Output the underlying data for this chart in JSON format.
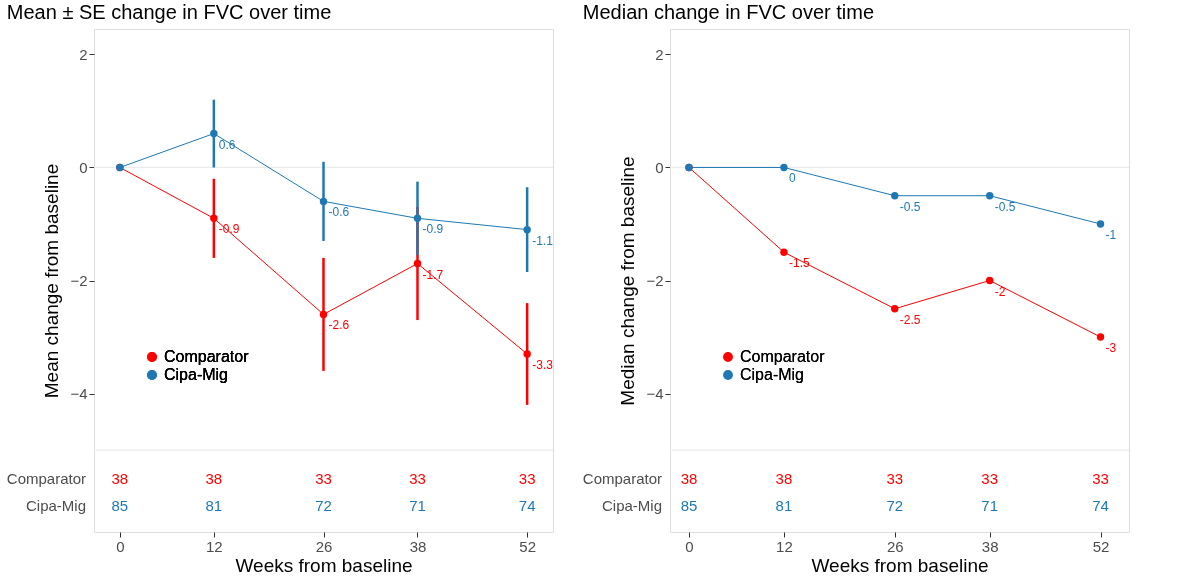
{
  "chart_data": [
    {
      "type": "line",
      "title": "Mean ± SE change in FVC over time",
      "xlabel": "Weeks from baseline",
      "ylabel": "Mean change from baseline",
      "x": [
        0,
        12,
        26,
        38,
        52
      ],
      "xlim": [
        -3.3,
        55.3
      ],
      "xticks": [
        0,
        12,
        26,
        38,
        52
      ],
      "ylim": [
        -6.45,
        2.45
      ],
      "yticks": [
        2,
        0,
        -2,
        -4
      ],
      "series": [
        {
          "name": "Comparator",
          "color": "#ff0000",
          "values": [
            0,
            -0.9,
            -2.6,
            -1.7,
            -3.3
          ],
          "errors": [
            null,
            0.7,
            1.0,
            1.0,
            0.9
          ],
          "value_labels": [
            null,
            "-0.9",
            "-2.6",
            "-1.7",
            "-3.3"
          ]
        },
        {
          "name": "Cipa-Mig",
          "color": "#1f78b4",
          "values": [
            0,
            0.6,
            -0.6,
            -0.9,
            -1.1
          ],
          "errors": [
            null,
            0.6,
            0.7,
            0.65,
            0.75
          ],
          "value_labels": [
            null,
            "0.6",
            "-0.6",
            "-0.9",
            "-1.1"
          ]
        }
      ],
      "marker": "circle",
      "line_style": "solid",
      "legend": "bottom left",
      "grid": false,
      "ref_lines": [
        {
          "axis": "y",
          "value": 0,
          "color": "#ebebeb"
        },
        {
          "axis": "y",
          "value": -5,
          "color": "#ebebeb"
        }
      ],
      "annotations": [
        "Comparator",
        "38",
        "38",
        "33",
        "33",
        "33",
        "Cipa-Mig",
        "85",
        "81",
        "72",
        "71",
        "74"
      ]
    },
    {
      "type": "line",
      "title": "Median change in FVC over time",
      "xlabel": "Weeks from baseline",
      "ylabel": "Median change from baseline",
      "x": [
        0,
        12,
        26,
        38,
        52
      ],
      "xlim": [
        -2.4,
        55.6
      ],
      "xticks": [
        0,
        12,
        26,
        38,
        52
      ],
      "ylim": [
        -6.45,
        2.45
      ],
      "yticks": [
        2,
        0,
        -2,
        -4
      ],
      "series": [
        {
          "name": "Comparator",
          "color": "#ff0000",
          "values": [
            0,
            -1.5,
            -2.5,
            -2,
            -3
          ],
          "value_labels": [
            null,
            "-1.5",
            "-2.5",
            "-2",
            "-3"
          ]
        },
        {
          "name": "Cipa-Mig",
          "color": "#1f78b4",
          "values": [
            0,
            0,
            -0.5,
            -0.5,
            -1
          ],
          "value_labels": [
            null,
            "0",
            "-0.5",
            "-0.5",
            "-1"
          ]
        }
      ],
      "marker": "circle",
      "line_style": "solid",
      "legend": "bottom left",
      "grid": false,
      "ref_lines": [
        {
          "axis": "y",
          "value": 0,
          "color": "#ebebeb"
        },
        {
          "axis": "y",
          "value": -5,
          "color": "#ebebeb"
        }
      ],
      "annotations": [
        "Comparator",
        "38",
        "38",
        "33",
        "33",
        "33",
        "Cipa-Mig",
        "85",
        "81",
        "72",
        "71",
        "74"
      ]
    }
  ]
}
